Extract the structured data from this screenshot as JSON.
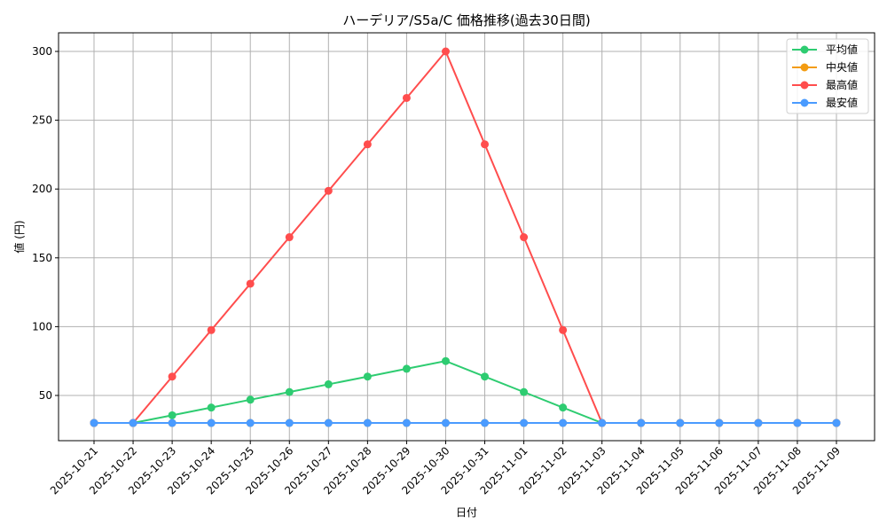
{
  "chart_data": {
    "type": "line",
    "title": "ハーデリア/S5a/C 価格推移(過去30日間)",
    "xlabel": "日付",
    "ylabel": "値 (円)",
    "categories": [
      "2025-10-21",
      "2025-10-22",
      "2025-10-23",
      "2025-10-24",
      "2025-10-25",
      "2025-10-26",
      "2025-10-27",
      "2025-10-28",
      "2025-10-29",
      "2025-10-30",
      "2025-10-31",
      "2025-11-01",
      "2025-11-02",
      "2025-11-03",
      "2025-11-04",
      "2025-11-05",
      "2025-11-06",
      "2025-11-07",
      "2025-11-08",
      "2025-11-09"
    ],
    "yticks": [
      50,
      100,
      150,
      200,
      250,
      300
    ],
    "ylim": [
      16.5,
      314
    ],
    "grid": true,
    "legend_position": "upper right",
    "series": [
      {
        "name": "平均値",
        "color": "#2ecc71",
        "values": [
          30,
          30,
          35.6,
          41.2,
          46.9,
          52.5,
          58.1,
          63.7,
          69.4,
          75,
          63.7,
          52.5,
          41.2,
          30,
          30,
          30,
          30,
          30,
          30,
          30
        ]
      },
      {
        "name": "中央値",
        "color": "#f39c12",
        "values": [
          30,
          30,
          30,
          30,
          30,
          30,
          30,
          30,
          30,
          30,
          30,
          30,
          30,
          30,
          30,
          30,
          30,
          30,
          30,
          30
        ]
      },
      {
        "name": "最高値",
        "color": "#ff4d4d",
        "values": [
          30,
          30,
          63.7,
          97.5,
          131.2,
          165,
          198.7,
          232.5,
          266.2,
          300,
          232.5,
          165,
          97.5,
          30,
          30,
          30,
          30,
          30,
          30,
          30
        ]
      },
      {
        "name": "最安値",
        "color": "#4a9bff",
        "values": [
          30,
          30,
          30,
          30,
          30,
          30,
          30,
          30,
          30,
          30,
          30,
          30,
          30,
          30,
          30,
          30,
          30,
          30,
          30,
          30
        ]
      }
    ]
  }
}
